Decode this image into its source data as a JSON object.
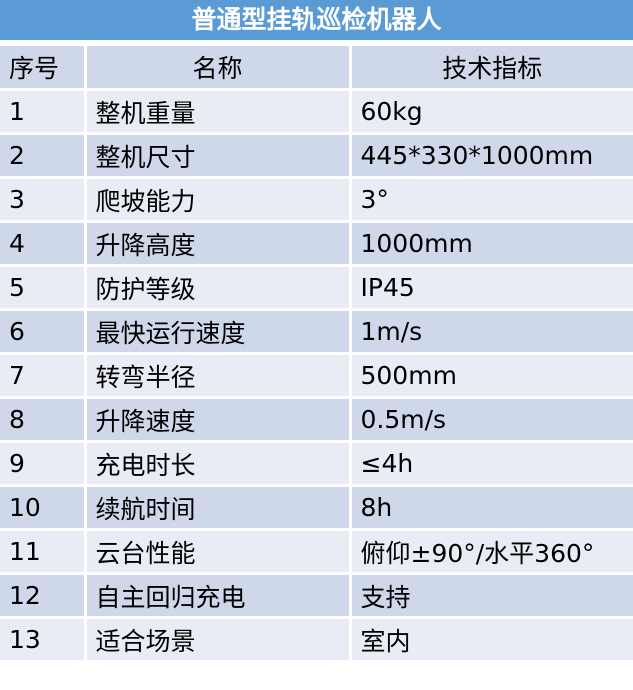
{
  "title": "普通型挂轨巡检机器人",
  "headers": [
    "序号",
    "名称",
    "技术指标"
  ],
  "rows": [
    [
      "1",
      "整机重量",
      "60kg"
    ],
    [
      "2",
      "整机尺寸",
      "445*330*1000mm"
    ],
    [
      "3",
      "爬坡能力",
      "3°"
    ],
    [
      "4",
      "升降高度",
      "1000mm"
    ],
    [
      "5",
      "防护等级",
      "IP45"
    ],
    [
      "6",
      "最快运行速度",
      "1m/s"
    ],
    [
      "7",
      "转弯半径",
      "500mm"
    ],
    [
      "8",
      "升降速度",
      "0.5m/s"
    ],
    [
      "9",
      "充电时长",
      "≤4h"
    ],
    [
      "10",
      "续航时间",
      "8h"
    ],
    [
      "11",
      "云台性能",
      "俯仰±90°/水平360°"
    ],
    [
      "12",
      "自主回归充电",
      "支持"
    ],
    [
      "13",
      "适合场景",
      "室内"
    ]
  ],
  "colors": {
    "title_bg": "#5b9bd5",
    "header_bg": "#cfd8eb",
    "row_light": "#e9ecf5",
    "row_dark": "#cfd8eb"
  }
}
